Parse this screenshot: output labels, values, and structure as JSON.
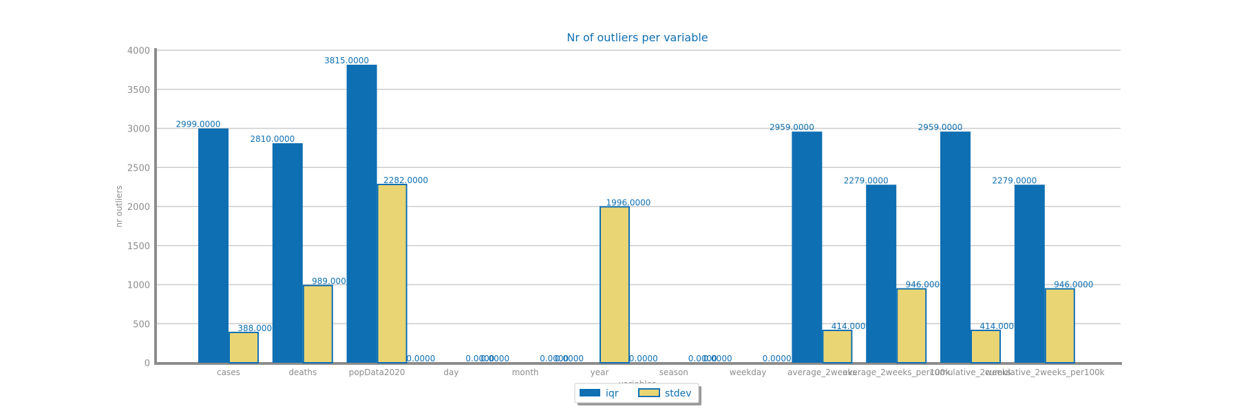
{
  "chart_data": {
    "type": "bar",
    "title": "Nr of outliers per variable",
    "xlabel": "variables",
    "ylabel": "nr outliers",
    "ylim": [
      0,
      4000
    ],
    "yticks": [
      0,
      500,
      1000,
      1500,
      2000,
      2500,
      3000,
      3500,
      4000
    ],
    "grid": true,
    "legend_position": "bottom-center",
    "categories": [
      "cases",
      "deaths",
      "popData2020",
      "day",
      "month",
      "year",
      "season",
      "weekday",
      "average_2weeks",
      "average_2weeks_per100k",
      "cumulative_2weeks",
      "cumulative_2weeks_per100k"
    ],
    "series": [
      {
        "name": "iqr",
        "color": "#0e6fb3",
        "values": [
          2999,
          2810,
          3815,
          0,
          0,
          0,
          0,
          0,
          2959,
          2279,
          2959,
          2279
        ],
        "labels": [
          "2999.0000",
          "2810.0000",
          "3815.0000",
          "0.0000",
          "0.0000",
          "0.0000",
          "0.0000",
          "0.0000",
          "2959.0000",
          "2279.0000",
          "2959.0000",
          "2279.0000"
        ]
      },
      {
        "name": "stdev",
        "color": "#ead575",
        "values": [
          388,
          989,
          2282,
          0,
          0,
          1996,
          0,
          0,
          414,
          946,
          414,
          946
        ],
        "labels": [
          "388.0000",
          "989.0000",
          "2282.0000",
          "0.0000",
          "0.0000",
          "1996.0000",
          "0.0000",
          "0.0000",
          "414.0000",
          "946.0000",
          "414.0000",
          "946.0000"
        ]
      }
    ]
  }
}
